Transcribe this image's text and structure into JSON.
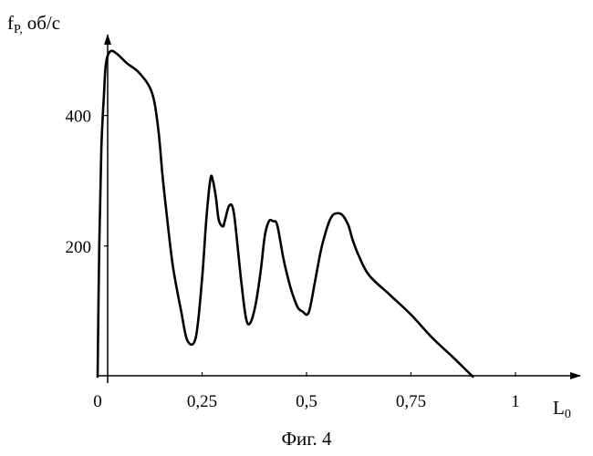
{
  "chart_data": {
    "type": "line",
    "title": "",
    "caption": "Фиг. 4",
    "ylabel_main": "f",
    "ylabel_sub": "P,",
    "ylabel_unit": "об/с",
    "xlabel_main": "L",
    "xlabel_sub": "0",
    "xlim": [
      0,
      1.15
    ],
    "ylim": [
      0,
      520
    ],
    "x_ticks": [
      {
        "value": 0,
        "label": "0"
      },
      {
        "value": 0.25,
        "label": "0,25"
      },
      {
        "value": 0.5,
        "label": "0,5"
      },
      {
        "value": 0.75,
        "label": "0,75"
      },
      {
        "value": 1,
        "label": "1"
      }
    ],
    "y_ticks": [
      {
        "value": 200,
        "label": "200"
      },
      {
        "value": 400,
        "label": "400"
      }
    ],
    "grid": false,
    "series": [
      {
        "x": [
          0.0,
          0.004,
          0.009,
          0.015,
          0.02,
          0.03,
          0.045,
          0.07,
          0.1,
          0.13,
          0.145,
          0.155,
          0.165,
          0.18,
          0.2,
          0.215,
          0.235,
          0.25,
          0.26,
          0.27,
          0.276,
          0.283,
          0.29,
          0.3,
          0.305,
          0.315,
          0.325,
          0.335,
          0.343,
          0.355,
          0.365,
          0.378,
          0.39,
          0.4,
          0.41,
          0.42,
          0.43,
          0.445,
          0.46,
          0.47,
          0.48,
          0.49,
          0.505,
          0.52,
          0.535,
          0.55,
          0.56,
          0.57,
          0.585,
          0.6,
          0.61,
          0.625,
          0.65,
          0.7,
          0.75,
          0.8,
          0.85,
          0.898
        ],
        "y": [
          0,
          200,
          350,
          430,
          480,
          498,
          495,
          480,
          465,
          435,
          380,
          310,
          250,
          170,
          100,
          55,
          60,
          150,
          240,
          303,
          300,
          275,
          240,
          230,
          240,
          262,
          255,
          200,
          150,
          90,
          82,
          110,
          160,
          215,
          238,
          238,
          232,
          180,
          140,
          120,
          105,
          100,
          98,
          145,
          195,
          230,
          245,
          250,
          248,
          232,
          210,
          185,
          155,
          125,
          95,
          60,
          30,
          0
        ]
      }
    ]
  }
}
